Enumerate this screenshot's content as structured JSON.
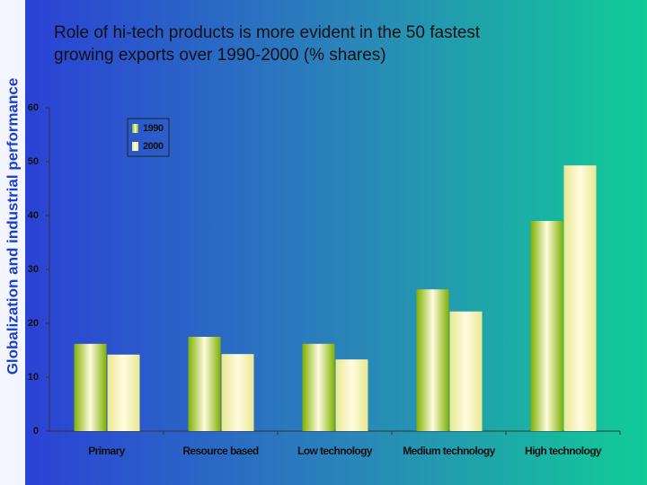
{
  "side_title": "Globalization and industrial performance",
  "chart_data": {
    "type": "bar",
    "title": [
      "Role of hi-tech products is more evident in the 50 fastest",
      "growing exports over 1990-2000 (% shares)"
    ],
    "categories": [
      "Primary",
      "Resource based",
      "Low technology",
      "Medium technology",
      "High technology"
    ],
    "series": [
      {
        "name": "1990",
        "color": "#7fb000",
        "values": [
          16.2,
          17.5,
          16.2,
          26.3,
          39
        ]
      },
      {
        "name": "2000",
        "color": "#e8e890",
        "values": [
          14.2,
          14.3,
          13.3,
          22.2,
          49.3
        ]
      }
    ],
    "ylim": [
      0,
      60
    ],
    "yticks": [
      0,
      10,
      20,
      30,
      40,
      50,
      60
    ],
    "legend": "upper-left"
  }
}
